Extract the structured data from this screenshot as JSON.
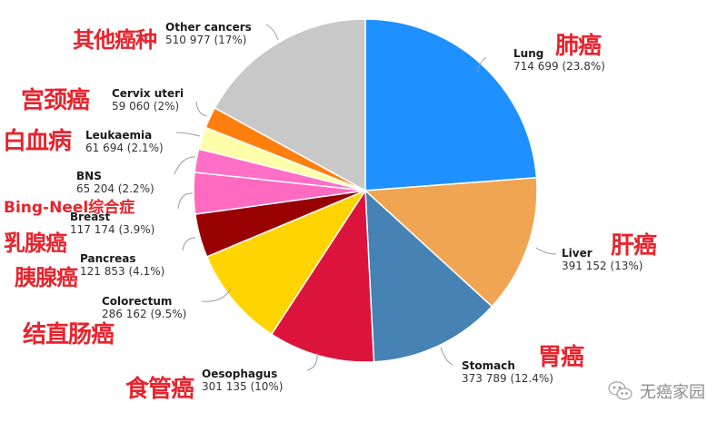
{
  "chart_data": {
    "type": "pie",
    "title": "",
    "start_angle_deg": 0,
    "direction": "clockwise",
    "center": [
      402,
      210
    ],
    "radius": 189,
    "slices": [
      {
        "name": "Lung",
        "value": 714699,
        "percent": 23.8,
        "percent_label": "714 699 (23.8%)",
        "cn": "肺癌",
        "color": "#1E90FF"
      },
      {
        "name": "Liver",
        "value": 391152,
        "percent": 13,
        "percent_label": "391 152 (13%)",
        "cn": "肝癌",
        "color": "#F0A552"
      },
      {
        "name": "Stomach",
        "value": 373789,
        "percent": 12.4,
        "percent_label": "373 789 (12.4%)",
        "cn": "胃癌",
        "color": "#4682B4"
      },
      {
        "name": "Oesophagus",
        "value": 301135,
        "percent": 10,
        "percent_label": "301 135 (10%)",
        "cn": "食管癌",
        "color": "#DC143C"
      },
      {
        "name": "Colorectum",
        "value": 286162,
        "percent": 9.5,
        "percent_label": "286 162 (9.5%)",
        "cn": "结直肠癌",
        "color": "#FFD400"
      },
      {
        "name": "Pancreas",
        "value": 121853,
        "percent": 4.1,
        "percent_label": "121 853 (4.1%)",
        "cn": "胰腺癌",
        "color": "#990000"
      },
      {
        "name": "Breast",
        "value": 117174,
        "percent": 3.9,
        "percent_label": "117 174 (3.9%)",
        "cn": "乳腺癌",
        "color": "#FF69C0"
      },
      {
        "name": "BNS",
        "value": 65204,
        "percent": 2.2,
        "percent_label": "65 204 (2.2%)",
        "cn": "Bing-Neel综合症",
        "color": "#FF6EC7"
      },
      {
        "name": "Leukaemia",
        "value": 61694,
        "percent": 2.1,
        "percent_label": "61 694 (2.1%)",
        "cn": "白血病",
        "color": "#FFFFAA"
      },
      {
        "name": "Cervix uteri",
        "value": 59060,
        "percent": 2,
        "percent_label": "59 060 (2%)",
        "cn": "宫颈癌",
        "color": "#FF7F0E"
      },
      {
        "name": "Other cancers",
        "value": 510977,
        "percent": 17,
        "percent_label": "510 977 (17%)",
        "cn": "其他癌种",
        "color": "#C8C8C8"
      }
    ],
    "legend": "none (callout labels)"
  },
  "labels": {
    "lung": {
      "name": "Lung",
      "val": "714 699 (23.8%)",
      "cn": "肺癌"
    },
    "liver": {
      "name": "Liver",
      "val": "391 152 (13%)",
      "cn": "肝癌"
    },
    "stomach": {
      "name": "Stomach",
      "val": "373 789 (12.4%)",
      "cn": "胃癌"
    },
    "oesophagus": {
      "name": "Oesophagus",
      "val": "301 135 (10%)",
      "cn": "食管癌"
    },
    "colorectum": {
      "name": "Colorectum",
      "val": "286 162 (9.5%)",
      "cn": "结直肠癌"
    },
    "pancreas": {
      "name": "Pancreas",
      "val": "121 853 (4.1%)",
      "cn": "胰腺癌"
    },
    "breast": {
      "name": "Breast",
      "val": "117 174 (3.9%)",
      "cn": "乳腺癌"
    },
    "bns": {
      "name": "BNS",
      "val": "65 204 (2.2%)",
      "cn": "Bing-Neel综合症"
    },
    "leukaemia": {
      "name": "Leukaemia",
      "val": "61 694 (2.1%)",
      "cn": "白血病"
    },
    "cervix": {
      "name": "Cervix uteri",
      "val": "59 060 (2%)",
      "cn": "宫颈癌"
    },
    "other": {
      "name": "Other cancers",
      "val": "510 977 (17%)",
      "cn": "其他癌种"
    }
  },
  "watermark": {
    "icon": "wechat-icon",
    "text": "无癌家园"
  }
}
